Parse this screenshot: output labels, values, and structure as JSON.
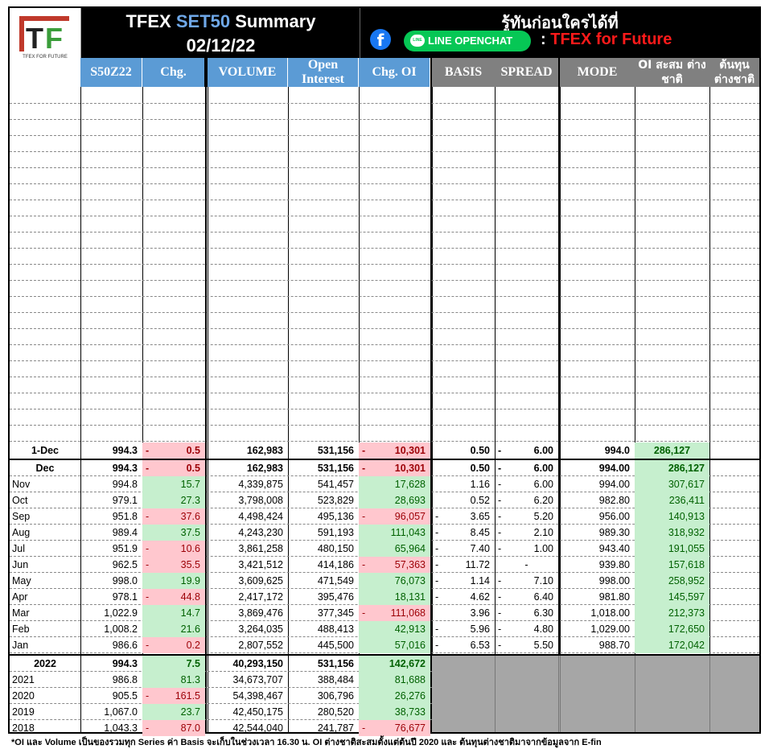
{
  "header": {
    "logo_letters": "TF",
    "logo_tagline": "TFEX FOR FUTURE",
    "title_prefix": "TFEX",
    "title_accent": "SET50",
    "title_suffix": "Summary",
    "date": "02/12/22",
    "promo_text": "รู้ทันก่อนใครได้ที่",
    "facebook_icon": "f",
    "line_label": "LINE OPENCHAT",
    "promo_colon": ":",
    "promo_brand": "TFEX for Future",
    "colors": {
      "accent_blue": "#5b9bd5",
      "brand_red": "#ff1a1a",
      "line_green": "#06c755",
      "facebook_blue": "#1877f2"
    }
  },
  "columns": [
    "S50Z22",
    "Chg.",
    "VOLUME",
    "Open Interest",
    "Chg. OI",
    "BASIS",
    "SPREAD",
    "MODE",
    "OI สะสม ต่างชาติ",
    "ต้นทุน ต่างชาติ"
  ],
  "day_row": {
    "label": "1-Dec",
    "price": "994.3",
    "chg_sign": "-",
    "chg": "0.5",
    "volume": "162,983",
    "oi": "531,156",
    "chg_oi_sign": "-",
    "chg_oi": "10,301",
    "basis": "0.50",
    "spread_sign": "-",
    "spread": "6.00",
    "mode": "994.0",
    "foreign_oi": "286,127",
    "foreign_cost": ""
  },
  "monthly": [
    {
      "label": "Dec",
      "price": "994.3",
      "chg_sign": "-",
      "chg": "0.5",
      "chg_dir": "neg",
      "volume": "162,983",
      "oi": "531,156",
      "chg_oi_sign": "-",
      "chg_oi": "10,301",
      "chg_oi_dir": "neg",
      "basis_sign": "",
      "basis": "0.50",
      "spread_sign": "-",
      "spread": "6.00",
      "mode": "994.00",
      "foreign_oi": "286,127",
      "foreign_cost": ""
    },
    {
      "label": "Nov",
      "price": "994.8",
      "chg_sign": "",
      "chg": "15.7",
      "chg_dir": "pos",
      "volume": "4,339,875",
      "oi": "541,457",
      "chg_oi_sign": "",
      "chg_oi": "17,628",
      "chg_oi_dir": "pos",
      "basis_sign": "",
      "basis": "1.16",
      "spread_sign": "-",
      "spread": "6.00",
      "mode": "994.00",
      "foreign_oi": "307,617",
      "foreign_cost": ""
    },
    {
      "label": "Oct",
      "price": "979.1",
      "chg_sign": "",
      "chg": "27.3",
      "chg_dir": "pos",
      "volume": "3,798,008",
      "oi": "523,829",
      "chg_oi_sign": "",
      "chg_oi": "28,693",
      "chg_oi_dir": "pos",
      "basis_sign": "",
      "basis": "0.52",
      "spread_sign": "-",
      "spread": "6.20",
      "mode": "982.80",
      "foreign_oi": "236,411",
      "foreign_cost": ""
    },
    {
      "label": "Sep",
      "price": "951.8",
      "chg_sign": "-",
      "chg": "37.6",
      "chg_dir": "neg",
      "volume": "4,498,424",
      "oi": "495,136",
      "chg_oi_sign": "-",
      "chg_oi": "96,057",
      "chg_oi_dir": "neg",
      "basis_sign": "-",
      "basis": "3.65",
      "spread_sign": "-",
      "spread": "5.20",
      "mode": "956.00",
      "foreign_oi": "140,913",
      "foreign_cost": ""
    },
    {
      "label": "Aug",
      "price": "989.4",
      "chg_sign": "",
      "chg": "37.5",
      "chg_dir": "pos",
      "volume": "4,243,230",
      "oi": "591,193",
      "chg_oi_sign": "",
      "chg_oi": "111,043",
      "chg_oi_dir": "pos",
      "basis_sign": "-",
      "basis": "8.45",
      "spread_sign": "-",
      "spread": "2.10",
      "mode": "989.30",
      "foreign_oi": "318,932",
      "foreign_cost": ""
    },
    {
      "label": "Jul",
      "price": "951.9",
      "chg_sign": "-",
      "chg": "10.6",
      "chg_dir": "neg",
      "volume": "3,861,258",
      "oi": "480,150",
      "chg_oi_sign": "",
      "chg_oi": "65,964",
      "chg_oi_dir": "pos",
      "basis_sign": "-",
      "basis": "7.40",
      "spread_sign": "-",
      "spread": "1.00",
      "mode": "943.40",
      "foreign_oi": "191,055",
      "foreign_cost": ""
    },
    {
      "label": "Jun",
      "price": "962.5",
      "chg_sign": "-",
      "chg": "35.5",
      "chg_dir": "neg",
      "volume": "3,421,512",
      "oi": "414,186",
      "chg_oi_sign": "-",
      "chg_oi": "57,363",
      "chg_oi_dir": "neg",
      "basis_sign": "-",
      "basis": "11.72",
      "spread_sign": "",
      "spread": "-",
      "mode": "939.80",
      "foreign_oi": "157,618",
      "foreign_cost": ""
    },
    {
      "label": "May",
      "price": "998.0",
      "chg_sign": "",
      "chg": "19.9",
      "chg_dir": "pos",
      "volume": "3,609,625",
      "oi": "471,549",
      "chg_oi_sign": "",
      "chg_oi": "76,073",
      "chg_oi_dir": "pos",
      "basis_sign": "-",
      "basis": "1.14",
      "spread_sign": "-",
      "spread": "7.10",
      "mode": "998.00",
      "foreign_oi": "258,952",
      "foreign_cost": ""
    },
    {
      "label": "Apr",
      "price": "978.1",
      "chg_sign": "-",
      "chg": "44.8",
      "chg_dir": "neg",
      "volume": "2,417,172",
      "oi": "395,476",
      "chg_oi_sign": "",
      "chg_oi": "18,131",
      "chg_oi_dir": "pos",
      "basis_sign": "-",
      "basis": "4.62",
      "spread_sign": "-",
      "spread": "6.40",
      "mode": "981.80",
      "foreign_oi": "145,597",
      "foreign_cost": ""
    },
    {
      "label": "Mar",
      "price": "1,022.9",
      "chg_sign": "",
      "chg": "14.7",
      "chg_dir": "pos",
      "volume": "3,869,476",
      "oi": "377,345",
      "chg_oi_sign": "-",
      "chg_oi": "111,068",
      "chg_oi_dir": "neg",
      "basis_sign": "",
      "basis": "3.96",
      "spread_sign": "-",
      "spread": "6.30",
      "mode": "1,018.00",
      "foreign_oi": "212,373",
      "foreign_cost": ""
    },
    {
      "label": "Feb",
      "price": "1,008.2",
      "chg_sign": "",
      "chg": "21.6",
      "chg_dir": "pos",
      "volume": "3,264,035",
      "oi": "488,413",
      "chg_oi_sign": "",
      "chg_oi": "42,913",
      "chg_oi_dir": "pos",
      "basis_sign": "-",
      "basis": "5.96",
      "spread_sign": "-",
      "spread": "4.80",
      "mode": "1,029.00",
      "foreign_oi": "172,650",
      "foreign_cost": ""
    },
    {
      "label": "Jan",
      "price": "986.6",
      "chg_sign": "-",
      "chg": "0.2",
      "chg_dir": "neg",
      "volume": "2,807,552",
      "oi": "445,500",
      "chg_oi_sign": "",
      "chg_oi": "57,016",
      "chg_oi_dir": "pos",
      "basis_sign": "-",
      "basis": "6.53",
      "spread_sign": "-",
      "spread": "5.50",
      "mode": "988.70",
      "foreign_oi": "172,042",
      "foreign_cost": ""
    }
  ],
  "yearly": [
    {
      "label": "2022",
      "price": "994.3",
      "chg_sign": "",
      "chg": "7.5",
      "chg_dir": "pos",
      "volume": "40,293,150",
      "oi": "531,156",
      "chg_oi_sign": "",
      "chg_oi": "142,672",
      "chg_oi_dir": "pos"
    },
    {
      "label": "2021",
      "price": "986.8",
      "chg_sign": "",
      "chg": "81.3",
      "chg_dir": "pos",
      "volume": "34,673,707",
      "oi": "388,484",
      "chg_oi_sign": "",
      "chg_oi": "81,688",
      "chg_oi_dir": "pos"
    },
    {
      "label": "2020",
      "price": "905.5",
      "chg_sign": "-",
      "chg": "161.5",
      "chg_dir": "neg",
      "volume": "54,398,467",
      "oi": "306,796",
      "chg_oi_sign": "",
      "chg_oi": "26,276",
      "chg_oi_dir": "pos"
    },
    {
      "label": "2019",
      "price": "1,067.0",
      "chg_sign": "",
      "chg": "23.7",
      "chg_dir": "pos",
      "volume": "42,450,175",
      "oi": "280,520",
      "chg_oi_sign": "",
      "chg_oi": "38,733",
      "chg_oi_dir": "pos"
    },
    {
      "label": "2018",
      "price": "1,043.3",
      "chg_sign": "-",
      "chg": "87.0",
      "chg_dir": "neg",
      "volume": "42,544,040",
      "oi": "241,787",
      "chg_oi_sign": "-",
      "chg_oi": "76,677",
      "chg_oi_dir": "neg"
    }
  ],
  "footnote": "*OI และ Volume เป็นของรวมทุก Series ค่า Basis จะเก็บในช่วงเวลา 16.30 น. OI ต่างชาติสะสมตั้งแต่ต้นปี 2020 และ ต้นทุนต่างชาติมาจากข้อมูลจาก E-fin"
}
